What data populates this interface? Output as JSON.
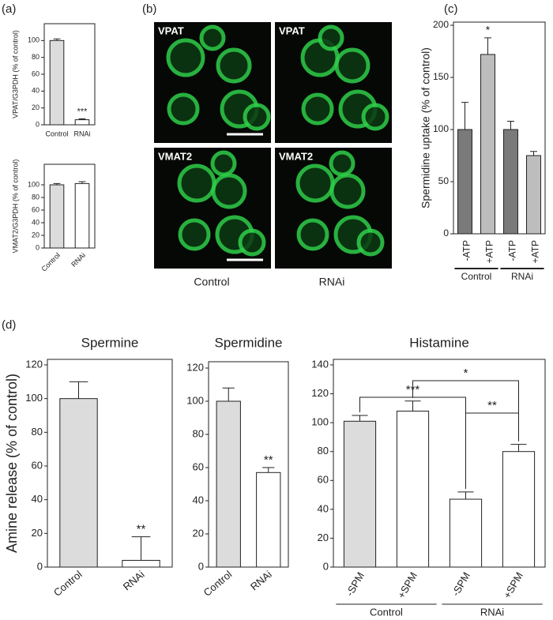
{
  "panel_labels": [
    "(a)",
    "(b)",
    "(c)",
    "(d)"
  ],
  "images": {
    "panels": [
      "VPAT",
      "VPAT",
      "VMAT2",
      "VMAT2"
    ],
    "columns": [
      "Control",
      "RNAi"
    ]
  },
  "chart_data": [
    {
      "type": "bar",
      "ylabel": "VPAT/G3PDH (% of control)",
      "categories": [
        "Control",
        "RNAi"
      ],
      "values": [
        100,
        6
      ],
      "errors": [
        2,
        1
      ],
      "colors": [
        "#dcdcdc",
        "#ffffff"
      ],
      "significance": [
        null,
        "***"
      ],
      "ylim": [
        0,
        120
      ],
      "yticks": [
        0,
        20,
        40,
        60,
        80,
        100
      ]
    },
    {
      "type": "bar",
      "ylabel": "VMAT2/G3PDH (% of control)",
      "categories": [
        "Control",
        "RNAi"
      ],
      "values": [
        100,
        102
      ],
      "errors": [
        2,
        3
      ],
      "colors": [
        "#dcdcdc",
        "#ffffff"
      ],
      "ylim": [
        0,
        130
      ],
      "yticks": [
        0,
        20,
        40,
        60,
        80,
        100
      ]
    },
    {
      "type": "bar",
      "ylabel": "Spermidine uptake (% of control)",
      "categories": [
        "-ATP",
        "+ATP",
        "-ATP",
        "+ATP"
      ],
      "groups": [
        "Control",
        "RNAi"
      ],
      "values": [
        100,
        172,
        100,
        75
      ],
      "errors": [
        26,
        16,
        8,
        4
      ],
      "colors": [
        "#7a7a7a",
        "#bdbdbd",
        "#7a7a7a",
        "#bdbdbd"
      ],
      "significance": [
        null,
        "*",
        null,
        null
      ],
      "ylim": [
        0,
        200
      ],
      "yticks": [
        0,
        50,
        100,
        150,
        200
      ]
    },
    {
      "type": "bar",
      "title": "Spermine",
      "ylabel": "Amine release (% of control)",
      "categories": [
        "Control",
        "RNAi"
      ],
      "values": [
        100,
        4
      ],
      "errors": [
        10,
        14
      ],
      "colors": [
        "#dcdcdc",
        "#ffffff"
      ],
      "significance": [
        null,
        "**"
      ],
      "ylim": [
        0,
        120
      ],
      "yticks": [
        0,
        20,
        40,
        60,
        80,
        100,
        120
      ]
    },
    {
      "type": "bar",
      "title": "Spermidine",
      "categories": [
        "Control",
        "RNAi"
      ],
      "values": [
        100,
        57
      ],
      "errors": [
        8,
        3
      ],
      "colors": [
        "#dcdcdc",
        "#ffffff"
      ],
      "significance": [
        null,
        "**"
      ],
      "ylim": [
        0,
        120
      ],
      "yticks": [
        0,
        20,
        40,
        60,
        80,
        100,
        120
      ]
    },
    {
      "type": "bar",
      "title": "Histamine",
      "categories": [
        "-SPM",
        "+SPM",
        "-SPM",
        "+SPM"
      ],
      "groups": [
        "Control",
        "RNAi"
      ],
      "values": [
        101,
        108,
        47,
        80
      ],
      "errors": [
        4,
        7,
        5,
        5
      ],
      "colors": [
        "#dcdcdc",
        "#ffffff",
        "#ffffff",
        "#ffffff"
      ],
      "brackets": [
        "***",
        "*",
        "**"
      ],
      "ylim": [
        0,
        140
      ],
      "yticks": [
        0,
        20,
        40,
        60,
        80,
        100,
        120,
        140
      ]
    }
  ]
}
